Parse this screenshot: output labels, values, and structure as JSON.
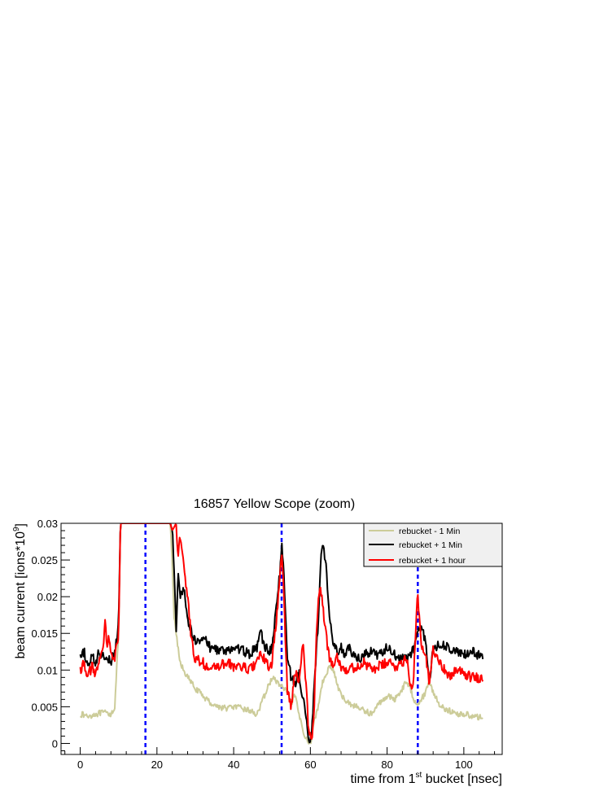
{
  "chart_data": {
    "type": "line",
    "title": "16857 Yellow Scope (zoom)",
    "xlabel": {
      "prefix": "time from 1",
      "sup": "st",
      "suffix": " bucket [nsec]"
    },
    "ylabel": {
      "prefix": "beam current [ions*10",
      "sup": "9",
      "suffix": "]"
    },
    "xlim": [
      -5,
      110
    ],
    "ylim": [
      -0.0015,
      0.03
    ],
    "x_ticks": [
      0,
      20,
      40,
      60,
      80,
      100
    ],
    "x_tick_labels": [
      "0",
      "20",
      "40",
      "60",
      "80",
      "100"
    ],
    "y_ticks": [
      0,
      0.005,
      0.01,
      0.015,
      0.02,
      0.025,
      0.03
    ],
    "y_tick_labels": [
      "0",
      "0.005",
      "0.01",
      "0.015",
      "0.02",
      "0.025",
      "0.03"
    ],
    "grid": false,
    "legend_position": "top-right",
    "vlines": {
      "color": "#0000ff",
      "style": "dashed",
      "x": [
        17,
        52.5,
        88
      ]
    },
    "series": [
      {
        "name": "rebucket - 1 Min",
        "color": "#cccc99",
        "x": [
          0,
          2,
          4,
          6,
          8,
          9,
          10,
          10.5,
          11,
          23.5,
          24,
          24.5,
          25,
          26,
          28,
          30,
          32,
          34,
          36,
          38,
          40,
          42,
          44,
          46,
          47,
          48,
          50,
          52,
          54,
          55,
          56,
          57,
          58,
          59,
          60,
          61,
          62,
          63,
          64,
          65,
          66,
          67,
          68,
          70,
          72,
          74,
          76,
          78,
          80,
          82,
          84,
          85,
          86,
          87,
          88,
          89,
          90,
          91,
          92,
          94,
          96,
          98,
          100,
          102,
          104,
          105
        ],
        "y": [
          0.004,
          0.0037,
          0.004,
          0.0042,
          0.004,
          0.005,
          0.015,
          0.03,
          0.03,
          0.03,
          0.024,
          0.017,
          0.015,
          0.011,
          0.009,
          0.0075,
          0.0065,
          0.0055,
          0.005,
          0.0048,
          0.005,
          0.0048,
          0.0045,
          0.004,
          0.005,
          0.0065,
          0.009,
          0.008,
          0.007,
          0.0055,
          0.0065,
          0.004,
          0.002,
          0.0005,
          0.0,
          0.003,
          0.005,
          0.008,
          0.0095,
          0.0105,
          0.01,
          0.008,
          0.0065,
          0.0055,
          0.005,
          0.0045,
          0.004,
          0.0055,
          0.0065,
          0.006,
          0.0075,
          0.0085,
          0.0075,
          0.006,
          0.0055,
          0.006,
          0.007,
          0.0085,
          0.007,
          0.005,
          0.0045,
          0.004,
          0.004,
          0.0038,
          0.0035,
          0.0037
        ]
      },
      {
        "name": "rebucket + 1 Min",
        "color": "#000000",
        "x": [
          0,
          1,
          2,
          3,
          4,
          5,
          6,
          7,
          8,
          9,
          10,
          10.5,
          11,
          23.5,
          24,
          24.5,
          25,
          25.5,
          26,
          27,
          28,
          29,
          30,
          32,
          34,
          36,
          38,
          40,
          42,
          44,
          46,
          47,
          48,
          49,
          50,
          51,
          52,
          52.5,
          53,
          53.5,
          54,
          55,
          56,
          57,
          58,
          59,
          59.5,
          60,
          60.5,
          61,
          62,
          62.5,
          63,
          64,
          65,
          66,
          67,
          68,
          69,
          70,
          72,
          74,
          76,
          78,
          80,
          82,
          84,
          86,
          87,
          88,
          89,
          90,
          91,
          92,
          94,
          96,
          98,
          100,
          102,
          104,
          105
        ],
        "y": [
          0.0115,
          0.0125,
          0.0105,
          0.0118,
          0.011,
          0.0125,
          0.0118,
          0.012,
          0.0112,
          0.0125,
          0.016,
          0.03,
          0.03,
          0.03,
          0.029,
          0.024,
          0.015,
          0.023,
          0.02,
          0.021,
          0.017,
          0.015,
          0.014,
          0.0145,
          0.013,
          0.0128,
          0.0125,
          0.013,
          0.0128,
          0.0122,
          0.013,
          0.015,
          0.0135,
          0.0125,
          0.013,
          0.018,
          0.023,
          0.027,
          0.024,
          0.018,
          0.012,
          0.009,
          0.008,
          0.0095,
          0.0065,
          0.003,
          0.001,
          0.0,
          0.003,
          0.008,
          0.016,
          0.023,
          0.027,
          0.025,
          0.017,
          0.0135,
          0.0125,
          0.013,
          0.012,
          0.013,
          0.0115,
          0.012,
          0.0125,
          0.012,
          0.013,
          0.012,
          0.0115,
          0.012,
          0.013,
          0.015,
          0.016,
          0.014,
          0.008,
          0.013,
          0.0135,
          0.013,
          0.0125,
          0.012,
          0.0125,
          0.012,
          0.0115
        ]
      },
      {
        "name": "rebucket + 1 hour",
        "color": "#ff0000",
        "x": [
          0,
          1,
          2,
          3,
          4,
          5,
          6,
          6.5,
          7,
          7.5,
          8,
          9,
          10,
          10.5,
          11,
          23.5,
          24,
          25,
          25.5,
          26,
          27,
          28,
          29,
          30,
          32,
          34,
          36,
          38,
          40,
          42,
          44,
          46,
          47,
          48,
          49,
          50,
          51,
          52,
          52.5,
          53,
          53.5,
          54,
          55,
          56,
          57,
          58,
          59,
          59.5,
          60,
          60.5,
          61,
          61.5,
          62,
          62.5,
          63,
          64,
          65,
          66,
          67,
          68,
          70,
          72,
          74,
          76,
          78,
          80,
          82,
          84,
          85,
          86,
          86.5,
          87,
          87.5,
          88,
          88.5,
          89,
          90,
          91,
          92,
          94,
          96,
          98,
          100,
          102,
          104,
          105
        ],
        "y": [
          0.01,
          0.011,
          0.009,
          0.0105,
          0.0095,
          0.011,
          0.013,
          0.0165,
          0.0135,
          0.015,
          0.012,
          0.0115,
          0.015,
          0.03,
          0.03,
          0.03,
          0.029,
          0.03,
          0.025,
          0.028,
          0.024,
          0.02,
          0.014,
          0.0115,
          0.011,
          0.01,
          0.0105,
          0.011,
          0.0105,
          0.0105,
          0.01,
          0.011,
          0.012,
          0.0115,
          0.0105,
          0.011,
          0.016,
          0.022,
          0.026,
          0.022,
          0.014,
          0.007,
          0.005,
          0.01,
          0.008,
          0.014,
          0.007,
          0.002,
          0.001,
          0.0005,
          0.005,
          0.014,
          0.0195,
          0.021,
          0.02,
          0.015,
          0.0115,
          0.011,
          0.012,
          0.0105,
          0.01,
          0.0105,
          0.011,
          0.01,
          0.0105,
          0.011,
          0.0105,
          0.011,
          0.012,
          0.0085,
          0.007,
          0.01,
          0.016,
          0.0205,
          0.016,
          0.013,
          0.012,
          0.008,
          0.013,
          0.011,
          0.009,
          0.01,
          0.0095,
          0.009,
          0.009,
          0.0088
        ]
      }
    ]
  }
}
